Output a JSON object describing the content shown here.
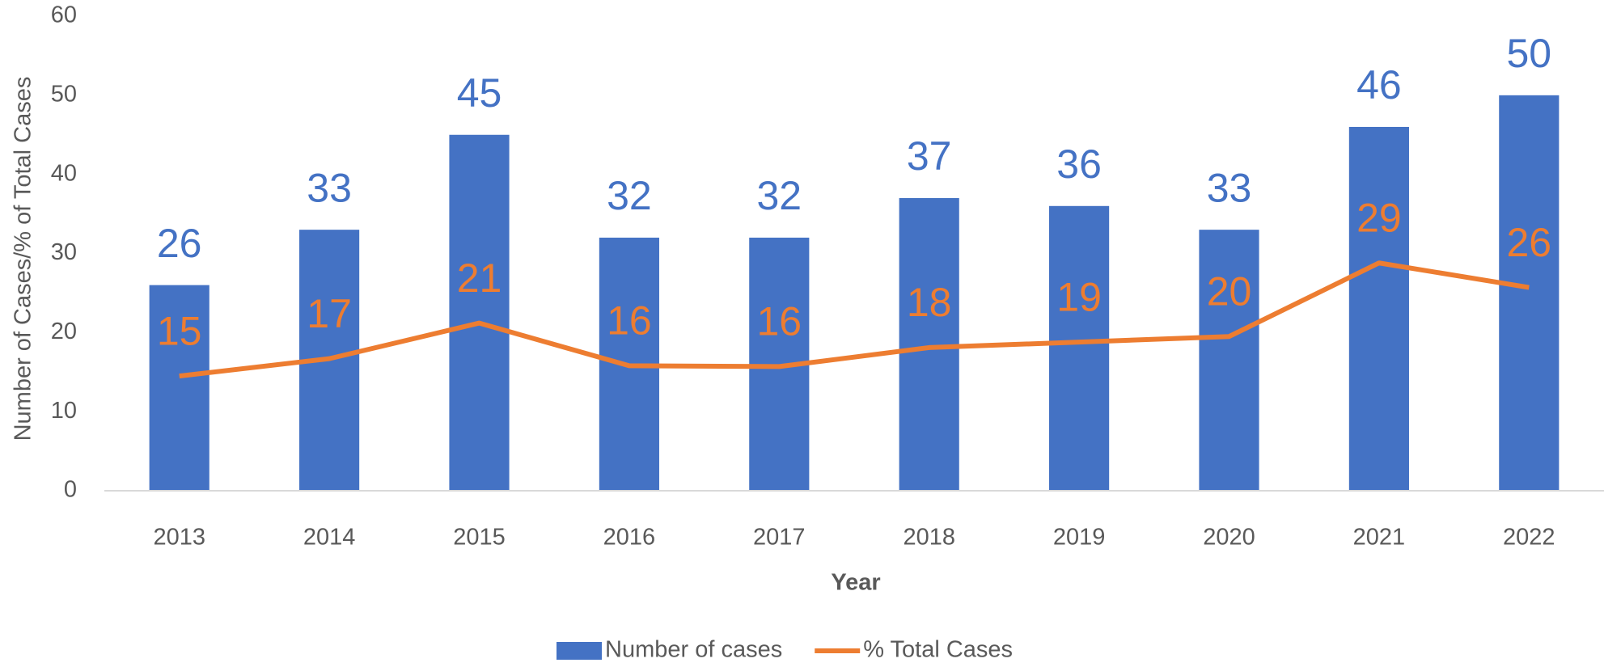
{
  "chart_data": {
    "type": "bar",
    "xlabel": "Year",
    "ylabel": "Number of Cases/% of Total Cases",
    "categories": [
      "2013",
      "2014",
      "2015",
      "2016",
      "2017",
      "2018",
      "2019",
      "2020",
      "2021",
      "2022"
    ],
    "series": [
      {
        "name": "Number of cases",
        "type": "bar",
        "color": "#4472c4",
        "values": [
          26,
          33,
          45,
          32,
          32,
          37,
          36,
          33,
          46,
          50
        ]
      },
      {
        "name": "% Total Cases",
        "type": "line",
        "color": "#ed7d31",
        "values": [
          14.5,
          16.7,
          21.2,
          15.8,
          15.7,
          18.1,
          18.8,
          19.5,
          28.8,
          25.7
        ],
        "value_labels": [
          "15",
          "17",
          "21",
          "16",
          "16",
          "18",
          "19",
          "20",
          "29",
          "26"
        ]
      }
    ],
    "ylim": [
      0,
      60
    ],
    "yticks": [
      0,
      10,
      20,
      30,
      40,
      50,
      60
    ],
    "grid": false,
    "legend": "bottom"
  }
}
